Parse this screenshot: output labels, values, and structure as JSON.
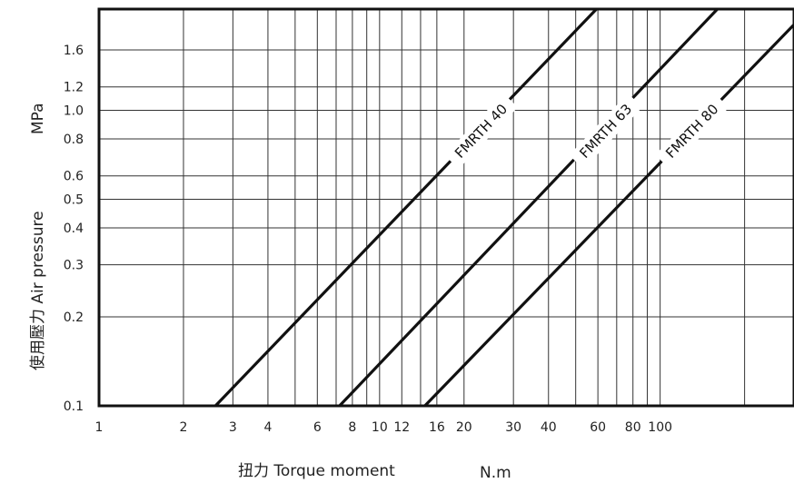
{
  "chart_data": {
    "type": "line",
    "title": "",
    "xlabel": "扭力 Torque moment",
    "xunit": "N.m",
    "ylabel": "使用壓力 Air pressure",
    "yunit": "MPa",
    "x_scale": "log",
    "y_scale": "log",
    "xlim": [
      1,
      300
    ],
    "ylim": [
      0.1,
      2.2
    ],
    "x_ticks": [
      1,
      2,
      3,
      4,
      6,
      8,
      10,
      12,
      16,
      20,
      30,
      40,
      60,
      80,
      100
    ],
    "x_tick_labels": [
      "1",
      "2",
      "3",
      "4",
      "6",
      "8",
      "10",
      "12",
      "16",
      "20",
      "30",
      "40",
      "60",
      "80",
      "100"
    ],
    "y_ticks": [
      0.1,
      0.2,
      0.3,
      0.4,
      0.5,
      0.6,
      0.8,
      1.0,
      1.2,
      1.6
    ],
    "y_tick_labels": [
      "0.1",
      "0.2",
      "0.3",
      "0.4",
      "0.5",
      "0.6",
      "0.8",
      "1.0",
      "1.2",
      "1.6"
    ],
    "x_gridlines": [
      1,
      2,
      3,
      4,
      5,
      6,
      7,
      8,
      9,
      10,
      12,
      14,
      16,
      20,
      30,
      40,
      50,
      60,
      70,
      80,
      90,
      100,
      200,
      300
    ],
    "y_gridlines": [
      0.1,
      0.2,
      0.3,
      0.4,
      0.5,
      0.6,
      0.8,
      1.0,
      1.2,
      1.6
    ],
    "grid": true,
    "series": [
      {
        "name": "FMRTH 40",
        "x": [
          2.6,
          59.3
        ],
        "y": [
          0.1,
          2.2
        ]
      },
      {
        "name": "FMRTH 63",
        "x": [
          7.2,
          160
        ],
        "y": [
          0.1,
          2.2
        ]
      },
      {
        "name": "FMRTH 80",
        "x": [
          14.5,
          300
        ],
        "y": [
          0.1,
          1.95
        ]
      }
    ],
    "series_label_positions": [
      [
        23,
        0.85
      ],
      [
        64,
        0.85
      ],
      [
        130,
        0.85
      ]
    ]
  }
}
